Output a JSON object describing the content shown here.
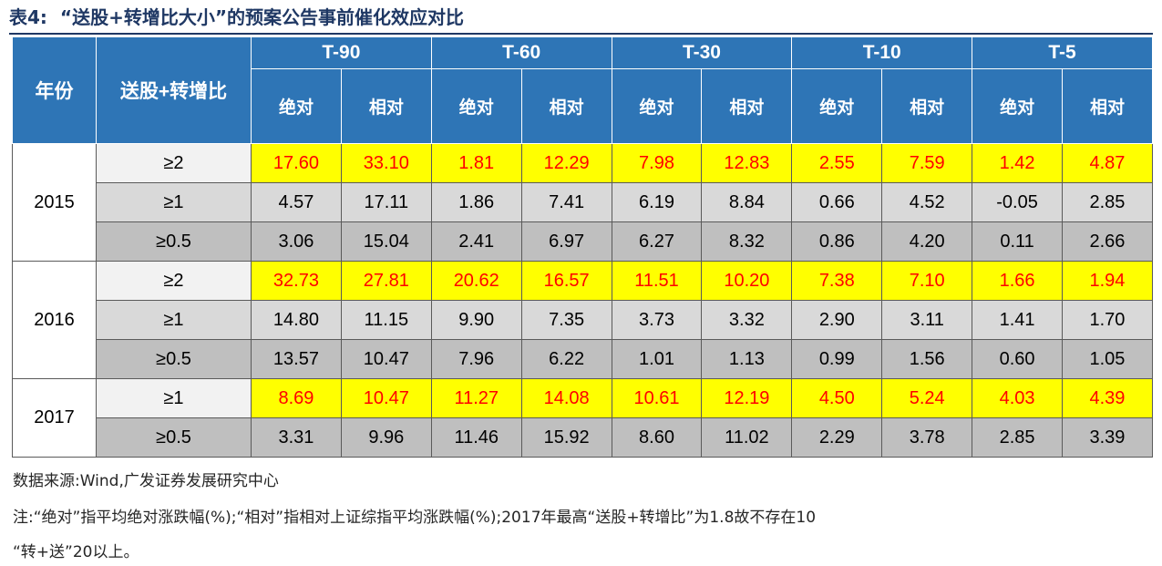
{
  "title": {
    "label": "表4:",
    "text": "“送股+转增比大小”的预案公告事前催化效应对比"
  },
  "table": {
    "year_header": "年份",
    "ratio_header": "送股+转增比",
    "periods": [
      "T-90",
      "T-60",
      "T-30",
      "T-10",
      "T-5"
    ],
    "sub_headers": [
      "绝对",
      "相对"
    ],
    "groups": [
      {
        "year": "2015",
        "rows": [
          {
            "ratio": "≥2",
            "highlight": true,
            "values": [
              "17.60",
              "33.10",
              "1.81",
              "12.29",
              "7.98",
              "12.83",
              "2.55",
              "7.59",
              "1.42",
              "4.87"
            ]
          },
          {
            "ratio": "≥1",
            "highlight": false,
            "values": [
              "4.57",
              "17.11",
              "1.86",
              "7.41",
              "6.19",
              "8.84",
              "0.66",
              "4.52",
              "-0.05",
              "2.85"
            ]
          },
          {
            "ratio": "≥0.5",
            "highlight": false,
            "values": [
              "3.06",
              "15.04",
              "2.41",
              "6.97",
              "6.27",
              "8.32",
              "0.86",
              "4.20",
              "0.11",
              "2.66"
            ]
          }
        ]
      },
      {
        "year": "2016",
        "rows": [
          {
            "ratio": "≥2",
            "highlight": true,
            "values": [
              "32.73",
              "27.81",
              "20.62",
              "16.57",
              "11.51",
              "10.20",
              "7.38",
              "7.10",
              "1.66",
              "1.94"
            ]
          },
          {
            "ratio": "≥1",
            "highlight": false,
            "values": [
              "14.80",
              "11.15",
              "9.90",
              "7.35",
              "3.73",
              "3.32",
              "2.90",
              "3.11",
              "1.41",
              "1.70"
            ]
          },
          {
            "ratio": "≥0.5",
            "highlight": false,
            "values": [
              "13.57",
              "10.47",
              "7.96",
              "6.22",
              "1.01",
              "1.13",
              "0.99",
              "1.56",
              "0.60",
              "1.05"
            ]
          }
        ]
      },
      {
        "year": "2017",
        "rows": [
          {
            "ratio": "≥1",
            "highlight": true,
            "values": [
              "8.69",
              "10.47",
              "11.27",
              "14.08",
              "10.61",
              "12.19",
              "4.50",
              "5.24",
              "4.03",
              "4.39"
            ]
          },
          {
            "ratio": "≥0.5",
            "highlight": false,
            "values": [
              "3.31",
              "9.96",
              "11.46",
              "15.92",
              "8.60",
              "11.02",
              "2.29",
              "3.78",
              "2.85",
              "3.39"
            ]
          }
        ]
      }
    ]
  },
  "source": "数据来源:Wind,广发证券发展研究中心",
  "note_line1": "注:“绝对”指平均绝对涨跌幅(%);“相对”指相对上证综指平均涨跌幅(%);2017年最高“送股+转增比”为1.8故不存在10",
  "note_line2": "“转+送”20以上。",
  "colors": {
    "header_bg": "#2e75b6",
    "highlight_bg": "#ffff00",
    "highlight_text": "#ff0000",
    "title": "#1f3864"
  }
}
